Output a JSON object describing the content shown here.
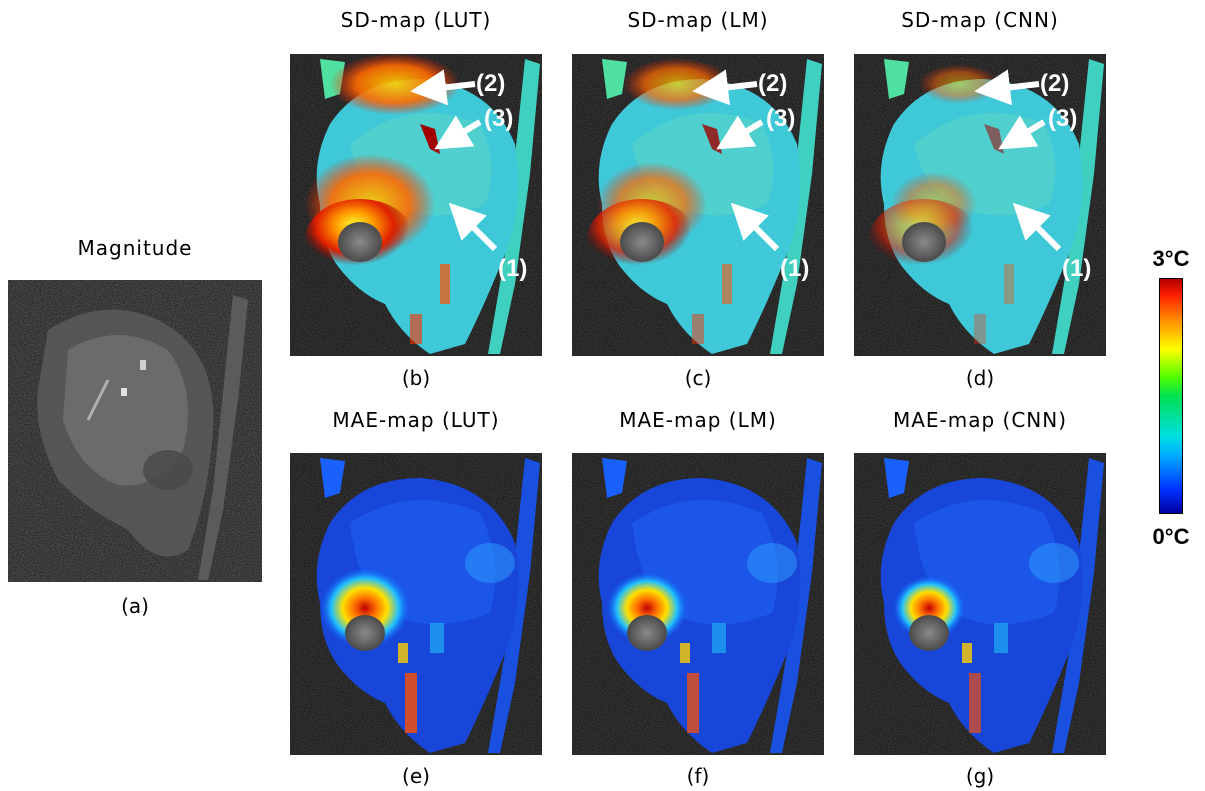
{
  "magnitude": {
    "title": "Magnitude",
    "caption": "(a)"
  },
  "sd_maps": [
    {
      "title": "SD-map (LUT)",
      "caption": "(b)"
    },
    {
      "title": "SD-map (LM)",
      "caption": "(c)"
    },
    {
      "title": "SD-map (CNN)",
      "caption": "(d)"
    }
  ],
  "mae_maps": [
    {
      "title": "MAE-map (LUT)",
      "caption": "(e)"
    },
    {
      "title": "MAE-map (LM)",
      "caption": "(f)"
    },
    {
      "title": "MAE-map (CNN)",
      "caption": "(g)"
    }
  ],
  "arrow_labels": {
    "a1": "(1)",
    "a2": "(2)",
    "a3": "(3)"
  },
  "colorbar": {
    "max_label": "3°C",
    "min_label": "0°C"
  }
}
